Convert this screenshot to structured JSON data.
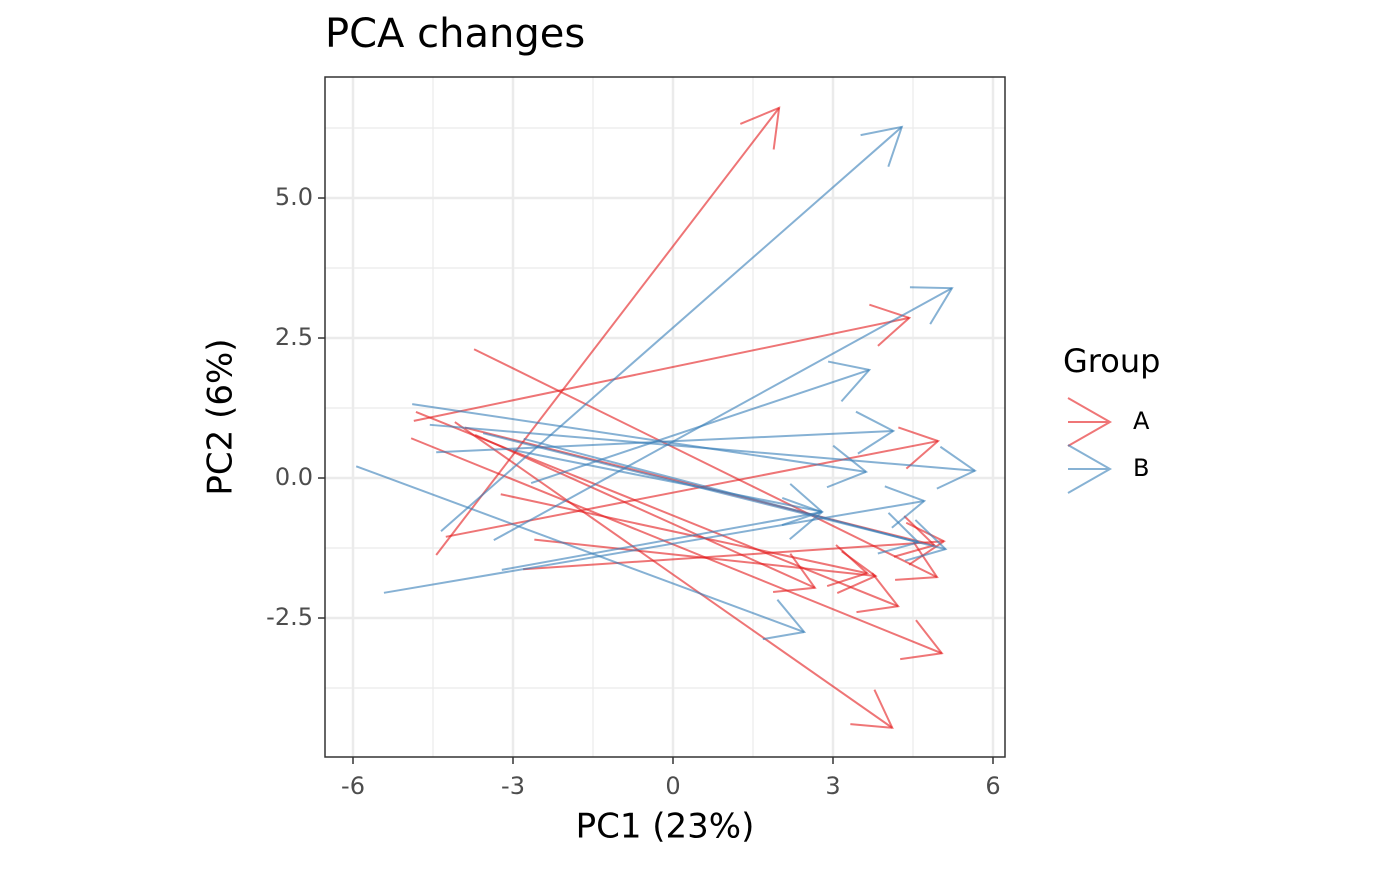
{
  "chart_data": {
    "type": "arrows",
    "title": "PCA changes",
    "x_label": "PC1 (23%)",
    "y_label": "PC2 (6%)",
    "legend_title": "Group",
    "legend_position": "right",
    "opacity": 0.6,
    "xlim": [
      -6.525,
      6.225
    ],
    "ylim": [
      -4.982,
      7.161
    ],
    "xticks": [
      -6,
      -3,
      0,
      3,
      6
    ],
    "yticks": [
      {
        "value": 5,
        "label": "5.0"
      },
      2.5,
      {
        "value": 0,
        "label": "0.0"
      },
      -2.5
    ],
    "x_minor_ticks": [
      -4.5,
      -1.5,
      1.5,
      4.5
    ],
    "y_minor_ticks": [
      -3.75,
      -1.25,
      1.25,
      3.75,
      6.25
    ],
    "grid": true,
    "series": [
      {
        "name": "A",
        "color": "#E41A1C",
        "x": [
          -4.44,
          -4.86,
          -3.73,
          -4.26,
          -4.91,
          -4.82,
          -4.09,
          -3.23,
          -2.81,
          -3.71,
          -3.9,
          -2.6
        ],
        "y": [
          -1.375,
          1.02,
          2.3,
          -1.05,
          0.71,
          1.18,
          1.0,
          -0.29,
          -1.63,
          0.77,
          0.9,
          -1.1
        ],
        "xend": [
          1.99,
          4.43,
          4.95,
          4.97,
          5.04,
          4.22,
          4.11,
          3.64,
          5.08,
          2.66,
          4.9,
          3.8
        ],
        "yend": [
          6.61,
          2.86,
          -1.77,
          0.66,
          -3.13,
          -2.29,
          -4.46,
          -1.7,
          -1.13,
          -1.96,
          -1.2,
          -1.75
        ]
      },
      {
        "name": "B",
        "color": "#377EB8",
        "x": [
          -4.35,
          -3.36,
          -2.66,
          -4.44,
          -4.89,
          -4.56,
          -5.94,
          -5.42,
          -3.21,
          -3.56,
          -3.0,
          -2.8
        ],
        "y": [
          -0.95,
          -1.11,
          -0.09,
          0.46,
          1.32,
          0.95,
          0.21,
          -2.05,
          -1.64,
          0.8,
          0.5,
          0.7
        ],
        "xend": [
          4.29,
          5.23,
          3.68,
          4.13,
          3.62,
          5.66,
          2.46,
          4.71,
          2.79,
          5.11,
          2.79,
          4.6
        ],
        "yend": [
          6.27,
          3.39,
          1.93,
          0.84,
          0.11,
          0.13,
          -2.75,
          -0.41,
          -0.61,
          -1.27,
          -0.6,
          -1.15
        ]
      }
    ]
  }
}
